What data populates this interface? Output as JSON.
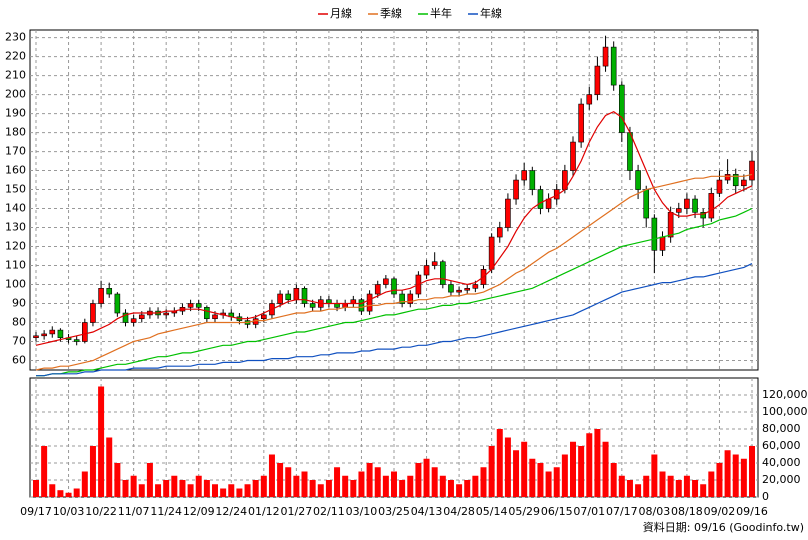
{
  "chart_data": [
    {
      "type": "candlestick",
      "categories": [
        "09/17",
        null,
        null,
        null,
        "10/03",
        null,
        null,
        null,
        "10/22",
        null,
        null,
        null,
        "11/07",
        null,
        null,
        null,
        "11/24",
        null,
        null,
        null,
        "12/09",
        null,
        null,
        null,
        "12/24",
        null,
        null,
        null,
        "01/12",
        null,
        null,
        null,
        "01/27",
        null,
        null,
        null,
        "02/11",
        null,
        null,
        null,
        "03/10",
        null,
        null,
        null,
        "03/25",
        null,
        null,
        null,
        "04/13",
        null,
        null,
        null,
        "04/28",
        null,
        null,
        null,
        "05/14",
        null,
        null,
        null,
        "05/29",
        null,
        null,
        null,
        "06/15",
        null,
        null,
        null,
        "07/01",
        null,
        null,
        null,
        "07/17",
        null,
        null,
        null,
        "08/03",
        null,
        null,
        null,
        "08/18",
        null,
        null,
        null,
        "09/02",
        null,
        null,
        null,
        "09/16"
      ],
      "ohlc": [
        [
          72,
          75,
          70,
          73
        ],
        [
          73,
          76,
          71,
          74
        ],
        [
          74,
          78,
          72,
          76
        ],
        [
          76,
          77,
          70,
          72
        ],
        [
          72,
          74,
          69,
          71
        ],
        [
          71,
          73,
          68,
          70
        ],
        [
          70,
          82,
          69,
          80
        ],
        [
          80,
          92,
          78,
          90
        ],
        [
          90,
          102,
          88,
          98
        ],
        [
          98,
          101,
          93,
          95
        ],
        [
          95,
          96,
          83,
          85
        ],
        [
          85,
          87,
          78,
          80
        ],
        [
          80,
          84,
          78,
          82
        ],
        [
          82,
          86,
          80,
          84
        ],
        [
          84,
          88,
          82,
          86
        ],
        [
          86,
          88,
          82,
          84
        ],
        [
          84,
          87,
          82,
          85
        ],
        [
          85,
          88,
          83,
          86
        ],
        [
          86,
          90,
          84,
          88
        ],
        [
          88,
          92,
          86,
          90
        ],
        [
          90,
          92,
          86,
          88
        ],
        [
          88,
          89,
          80,
          82
        ],
        [
          82,
          86,
          80,
          84
        ],
        [
          84,
          87,
          82,
          85
        ],
        [
          85,
          87,
          81,
          83
        ],
        [
          83,
          85,
          79,
          81
        ],
        [
          81,
          83,
          77,
          79
        ],
        [
          79,
          84,
          77,
          82
        ],
        [
          82,
          86,
          80,
          84
        ],
        [
          84,
          92,
          82,
          90
        ],
        [
          90,
          97,
          88,
          95
        ],
        [
          95,
          97,
          90,
          92
        ],
        [
          92,
          100,
          90,
          98
        ],
        [
          98,
          99,
          88,
          90
        ],
        [
          90,
          92,
          86,
          88
        ],
        [
          88,
          94,
          86,
          92
        ],
        [
          92,
          94,
          88,
          90
        ],
        [
          90,
          92,
          86,
          88
        ],
        [
          88,
          92,
          86,
          90
        ],
        [
          90,
          94,
          88,
          92
        ],
        [
          92,
          93,
          84,
          86
        ],
        [
          86,
          97,
          84,
          95
        ],
        [
          95,
          102,
          93,
          100
        ],
        [
          100,
          105,
          98,
          103
        ],
        [
          103,
          104,
          93,
          95
        ],
        [
          95,
          97,
          88,
          90
        ],
        [
          90,
          97,
          88,
          95
        ],
        [
          95,
          107,
          93,
          105
        ],
        [
          105,
          113,
          103,
          110
        ],
        [
          110,
          117,
          108,
          112
        ],
        [
          112,
          113,
          98,
          100
        ],
        [
          100,
          102,
          94,
          96
        ],
        [
          96,
          99,
          94,
          97
        ],
        [
          97,
          100,
          95,
          98
        ],
        [
          98,
          102,
          96,
          100
        ],
        [
          100,
          110,
          98,
          108
        ],
        [
          108,
          127,
          106,
          125
        ],
        [
          125,
          133,
          122,
          130
        ],
        [
          130,
          148,
          128,
          145
        ],
        [
          145,
          158,
          142,
          155
        ],
        [
          155,
          164,
          152,
          160
        ],
        [
          160,
          162,
          147,
          150
        ],
        [
          150,
          152,
          137,
          140
        ],
        [
          140,
          148,
          138,
          145
        ],
        [
          145,
          153,
          142,
          150
        ],
        [
          150,
          163,
          148,
          160
        ],
        [
          160,
          178,
          157,
          175
        ],
        [
          175,
          198,
          172,
          195
        ],
        [
          195,
          204,
          192,
          200
        ],
        [
          200,
          220,
          197,
          215
        ],
        [
          215,
          231,
          212,
          225
        ],
        [
          225,
          228,
          202,
          205
        ],
        [
          205,
          207,
          175,
          180
        ],
        [
          180,
          183,
          155,
          160
        ],
        [
          160,
          163,
          145,
          150
        ],
        [
          150,
          152,
          130,
          135
        ],
        [
          135,
          137,
          106,
          118
        ],
        [
          118,
          128,
          115,
          125
        ],
        [
          125,
          141,
          122,
          138
        ],
        [
          138,
          143,
          135,
          140
        ],
        [
          140,
          148,
          137,
          145
        ],
        [
          145,
          147,
          135,
          138
        ],
        [
          138,
          140,
          130,
          135
        ],
        [
          135,
          151,
          133,
          148
        ],
        [
          148,
          160,
          146,
          155
        ],
        [
          155,
          166,
          153,
          158
        ],
        [
          158,
          161,
          148,
          152
        ],
        [
          152,
          158,
          149,
          155
        ],
        [
          155,
          170,
          152,
          165
        ]
      ],
      "up_color": "#ff0000",
      "down_color": "#00b000",
      "series": [
        {
          "name": "月線",
          "color": "#e00000",
          "values": [
            68,
            69,
            70,
            71,
            72,
            73,
            74,
            75,
            77,
            79,
            82,
            84,
            85,
            85,
            85,
            85,
            86,
            86,
            87,
            87,
            87,
            86,
            85,
            84,
            83,
            82,
            82,
            83,
            85,
            87,
            89,
            91,
            92,
            92,
            91,
            90,
            90,
            90,
            90,
            90,
            90,
            92,
            94,
            96,
            97,
            97,
            98,
            100,
            102,
            103,
            103,
            102,
            101,
            100,
            101,
            104,
            108,
            114,
            120,
            128,
            135,
            140,
            143,
            145,
            147,
            150,
            157,
            165,
            175,
            183,
            189,
            191,
            188,
            180,
            170,
            160,
            150,
            143,
            138,
            136,
            136,
            137,
            137,
            139,
            142,
            146,
            148,
            150,
            152
          ]
        },
        {
          "name": "季線",
          "color": "#e07020",
          "values": [
            55,
            56,
            56,
            57,
            57,
            58,
            59,
            60,
            62,
            64,
            66,
            68,
            70,
            71,
            72,
            74,
            75,
            76,
            77,
            78,
            79,
            80,
            80,
            80,
            80,
            80,
            80,
            81,
            81,
            82,
            83,
            84,
            85,
            85,
            86,
            86,
            87,
            87,
            88,
            88,
            88,
            89,
            89,
            90,
            90,
            91,
            91,
            92,
            92,
            93,
            93,
            94,
            94,
            95,
            95,
            96,
            98,
            100,
            103,
            106,
            108,
            111,
            114,
            117,
            119,
            122,
            125,
            128,
            131,
            134,
            137,
            140,
            143,
            146,
            148,
            150,
            151,
            152,
            153,
            154,
            155,
            156,
            156,
            157,
            157,
            157,
            157,
            157,
            158
          ]
        },
        {
          "name": "半年",
          "color": "#00c000",
          "values": [
            52,
            52,
            53,
            53,
            54,
            54,
            55,
            55,
            56,
            57,
            58,
            58,
            59,
            60,
            61,
            62,
            62,
            63,
            64,
            64,
            65,
            66,
            67,
            68,
            68,
            69,
            70,
            70,
            71,
            72,
            73,
            74,
            75,
            75,
            76,
            77,
            78,
            79,
            80,
            80,
            81,
            82,
            83,
            84,
            84,
            85,
            86,
            87,
            87,
            88,
            89,
            89,
            90,
            90,
            91,
            92,
            93,
            94,
            95,
            96,
            97,
            98,
            100,
            102,
            104,
            106,
            108,
            110,
            112,
            114,
            116,
            118,
            120,
            121,
            122,
            123,
            124,
            125,
            126,
            127,
            129,
            130,
            131,
            132,
            134,
            135,
            136,
            138,
            140
          ]
        },
        {
          "name": "年線",
          "color": "#1050c0",
          "values": [
            52,
            52,
            53,
            53,
            53,
            53,
            54,
            54,
            55,
            55,
            55,
            55,
            56,
            56,
            56,
            56,
            57,
            57,
            57,
            57,
            58,
            58,
            58,
            59,
            59,
            59,
            60,
            60,
            60,
            61,
            61,
            61,
            62,
            62,
            62,
            63,
            63,
            64,
            64,
            64,
            65,
            65,
            66,
            66,
            66,
            67,
            67,
            68,
            68,
            69,
            70,
            70,
            71,
            72,
            72,
            73,
            74,
            75,
            76,
            77,
            78,
            79,
            80,
            81,
            82,
            83,
            84,
            86,
            88,
            90,
            92,
            94,
            96,
            97,
            98,
            99,
            100,
            101,
            101,
            102,
            103,
            104,
            104,
            105,
            106,
            107,
            108,
            109,
            111
          ]
        }
      ],
      "ylim": [
        55,
        234
      ],
      "yticks": [
        60,
        70,
        80,
        90,
        100,
        110,
        120,
        130,
        140,
        150,
        160,
        170,
        180,
        190,
        200,
        210,
        220,
        230
      ],
      "grid": true,
      "legend": "top"
    },
    {
      "type": "bar",
      "color": "#ff0000",
      "values": [
        20000,
        60000,
        15000,
        8000,
        5000,
        10000,
        30000,
        60000,
        130000,
        70000,
        40000,
        20000,
        25000,
        15000,
        40000,
        15000,
        20000,
        25000,
        20000,
        15000,
        25000,
        20000,
        15000,
        10000,
        15000,
        10000,
        15000,
        20000,
        25000,
        50000,
        40000,
        35000,
        25000,
        30000,
        20000,
        15000,
        20000,
        35000,
        25000,
        20000,
        30000,
        40000,
        35000,
        25000,
        30000,
        20000,
        25000,
        40000,
        45000,
        35000,
        25000,
        20000,
        15000,
        20000,
        25000,
        35000,
        60000,
        80000,
        70000,
        55000,
        65000,
        45000,
        40000,
        30000,
        35000,
        50000,
        65000,
        60000,
        75000,
        80000,
        65000,
        40000,
        25000,
        20000,
        15000,
        25000,
        50000,
        30000,
        25000,
        20000,
        25000,
        20000,
        15000,
        30000,
        40000,
        55000,
        50000,
        45000,
        60000
      ],
      "ylim": [
        0,
        140000
      ],
      "yticks": [
        0,
        {
          "value": 20000,
          "label": "20,000"
        },
        {
          "value": 40000,
          "label": "40,000"
        },
        {
          "value": 60000,
          "label": "60,000"
        },
        {
          "value": 80000,
          "label": "80,000"
        },
        {
          "value": 100000,
          "label": "100,000"
        },
        {
          "value": 120000,
          "label": "120,000"
        }
      ],
      "grid": true
    }
  ],
  "footer": "資料日期: 09/16 (Goodinfo.tw)"
}
